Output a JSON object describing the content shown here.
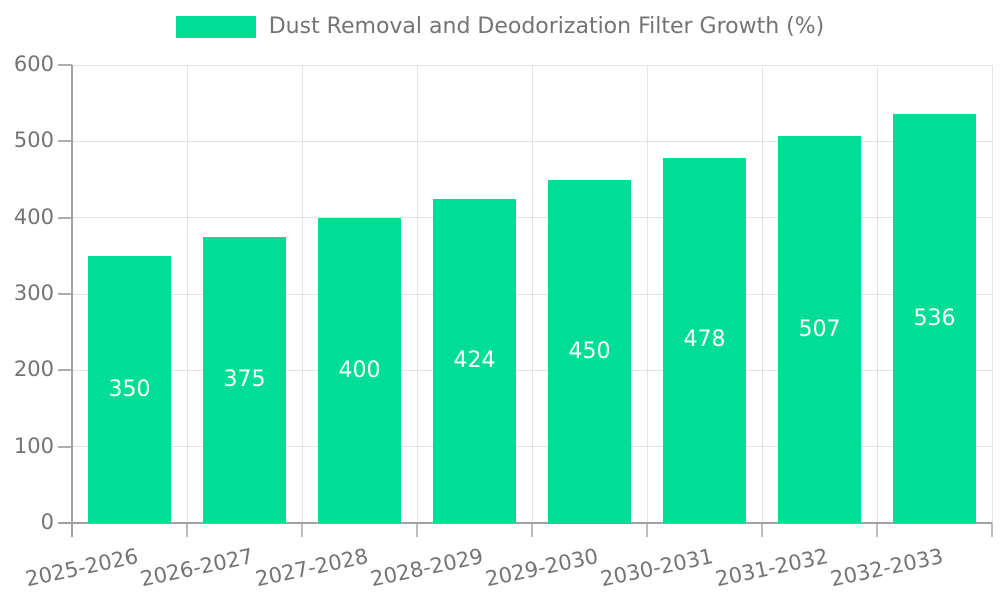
{
  "chart_data": {
    "type": "bar",
    "title": "Dust Removal and Deodorization Filter Growth (%)",
    "legend": {
      "position": "top",
      "label": "Dust Removal and Deodorization Filter Growth (%)",
      "swatch_color": "#00DE96"
    },
    "categories": [
      "2025-2026",
      "2026-2027",
      "2027-2028",
      "2028-2029",
      "2029-2030",
      "2030-2031",
      "2031-2032",
      "2032-2033"
    ],
    "values": [
      350,
      375,
      400,
      424,
      450,
      478,
      507,
      536
    ],
    "bar_value_labels": [
      "350",
      "375",
      "400",
      "424",
      "450",
      "478",
      "507",
      "536"
    ],
    "xlabel": "",
    "ylabel": "",
    "ylim": [
      0,
      600
    ],
    "ytick_step": 100,
    "ytick_labels": [
      "0",
      "100",
      "200",
      "300",
      "400",
      "500",
      "600"
    ],
    "grid": true,
    "colors": {
      "bar": "#00DE96",
      "value_label_text": "#ffffff",
      "axis_text": "#747474",
      "axis_line": "#a2a2a2",
      "gridline": "#e4e4e4"
    }
  }
}
